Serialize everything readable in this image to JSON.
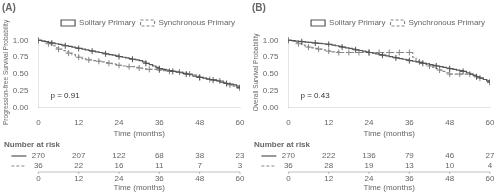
{
  "chart_data": [
    {
      "type": "step",
      "title": "(A)",
      "x_label": "Time (months)",
      "y_label": "Progression-free Survival Probability",
      "annotations": [
        "p = 0.91"
      ],
      "x": [
        0,
        1,
        2,
        3,
        4,
        5,
        6,
        7,
        8,
        9,
        10,
        11,
        12,
        13,
        14,
        15,
        16,
        17,
        18,
        19,
        20,
        21,
        22,
        23,
        24,
        25,
        26,
        27,
        28,
        29,
        30,
        31,
        32,
        33,
        34,
        35,
        36,
        37,
        38,
        39,
        40,
        41,
        42,
        43,
        44,
        45,
        46,
        47,
        48,
        49,
        50,
        51,
        52,
        53,
        54,
        55,
        56,
        57,
        58,
        59,
        60
      ],
      "series": [
        {
          "name": "Solitary Primary",
          "color": "#555555",
          "line_style": "solid",
          "marker": "+",
          "values": [
            1.0,
            0.99,
            0.98,
            0.97,
            0.96,
            0.95,
            0.94,
            0.93,
            0.92,
            0.91,
            0.9,
            0.89,
            0.88,
            0.87,
            0.86,
            0.85,
            0.84,
            0.83,
            0.82,
            0.81,
            0.8,
            0.79,
            0.78,
            0.77,
            0.76,
            0.75,
            0.74,
            0.73,
            0.72,
            0.71,
            0.7,
            0.68,
            0.66,
            0.64,
            0.62,
            0.6,
            0.58,
            0.57,
            0.56,
            0.55,
            0.54,
            0.53,
            0.52,
            0.51,
            0.5,
            0.49,
            0.47,
            0.46,
            0.45,
            0.44,
            0.43,
            0.42,
            0.41,
            0.4,
            0.38,
            0.37,
            0.36,
            0.35,
            0.34,
            0.32,
            0.3
          ]
        },
        {
          "name": "Synchronous Primary",
          "color": "#888888",
          "line_style": "dashed",
          "marker": "+",
          "values": [
            1.0,
            0.99,
            0.97,
            0.95,
            0.92,
            0.89,
            0.87,
            0.85,
            0.83,
            0.81,
            0.79,
            0.77,
            0.75,
            0.73,
            0.72,
            0.71,
            0.7,
            0.7,
            0.69,
            0.68,
            0.67,
            0.66,
            0.65,
            0.64,
            0.63,
            0.62,
            0.61,
            0.61,
            0.61,
            0.6,
            0.59,
            0.58,
            0.57,
            0.57,
            0.57,
            0.57,
            0.56,
            0.55,
            0.54,
            0.54,
            0.54,
            0.54,
            0.53,
            0.52,
            0.51,
            0.5,
            0.49,
            0.47,
            0.45,
            0.44,
            0.43,
            0.42,
            0.42,
            0.41,
            0.4,
            0.38,
            0.36,
            0.34,
            0.32,
            0.3,
            0.29
          ]
        }
      ],
      "xlim": [
        0,
        60
      ],
      "ylim": [
        0,
        1.05
      ],
      "xticks": [
        0,
        12,
        24,
        36,
        48,
        60
      ],
      "yticks": [
        {
          "value": 0,
          "label": "0.00"
        },
        0.25,
        {
          "value": 0.5,
          "label": "0.50"
        },
        0.75,
        {
          "value": 1,
          "label": "1.00"
        }
      ],
      "grid": false,
      "legend": "upper right",
      "number_at_risk": {
        "title": "Number at risk",
        "x": [
          0,
          12,
          24,
          36,
          48,
          60
        ],
        "rows": [
          [
            270,
            207,
            122,
            68,
            38,
            23
          ],
          [
            36,
            22,
            16,
            11,
            7,
            3
          ]
        ]
      }
    },
    {
      "type": "step",
      "title": "(B)",
      "x_label": "Time (months)",
      "y_label": "Overall Survival Probability",
      "annotations": [
        "p = 0.43"
      ],
      "x": [
        0,
        1,
        2,
        3,
        4,
        5,
        6,
        7,
        8,
        9,
        10,
        11,
        12,
        13,
        14,
        15,
        16,
        17,
        18,
        19,
        20,
        21,
        22,
        23,
        24,
        25,
        26,
        27,
        28,
        29,
        30,
        31,
        32,
        33,
        34,
        35,
        36,
        37,
        38,
        39,
        40,
        41,
        42,
        43,
        44,
        45,
        46,
        47,
        48,
        49,
        50,
        51,
        52,
        53,
        54,
        55,
        56,
        57,
        58,
        59,
        60
      ],
      "series": [
        {
          "name": "Solitary Primary",
          "color": "#555555",
          "line_style": "solid",
          "marker": "+",
          "values": [
            1.0,
            0.995,
            0.99,
            0.985,
            0.98,
            0.975,
            0.97,
            0.965,
            0.96,
            0.955,
            0.95,
            0.945,
            0.94,
            0.93,
            0.92,
            0.91,
            0.9,
            0.89,
            0.88,
            0.87,
            0.86,
            0.85,
            0.84,
            0.83,
            0.82,
            0.81,
            0.8,
            0.79,
            0.78,
            0.77,
            0.76,
            0.75,
            0.74,
            0.73,
            0.72,
            0.71,
            0.7,
            0.69,
            0.68,
            0.67,
            0.66,
            0.65,
            0.64,
            0.63,
            0.62,
            0.61,
            0.6,
            0.59,
            0.58,
            0.57,
            0.56,
            0.55,
            0.54,
            0.52,
            0.5,
            0.48,
            0.46,
            0.44,
            0.42,
            0.4,
            0.38
          ]
        },
        {
          "name": "Synchronous Primary",
          "color": "#888888",
          "line_style": "dashed",
          "marker": "+",
          "values": [
            1.0,
            0.99,
            0.97,
            0.95,
            0.93,
            0.91,
            0.9,
            0.89,
            0.88,
            0.87,
            0.86,
            0.85,
            0.84,
            0.83,
            0.83,
            0.82,
            0.82,
            0.82,
            0.82,
            0.82,
            0.82,
            0.82,
            0.82,
            0.82,
            0.82,
            0.82,
            0.82,
            0.82,
            0.82,
            0.82,
            0.82,
            0.82,
            0.82,
            0.82,
            0.82,
            0.82,
            0.82,
            0.75,
            0.7,
            0.68,
            0.66,
            0.64,
            0.62,
            0.6,
            0.58,
            0.56,
            0.54,
            0.52,
            0.5,
            0.5,
            0.5,
            0.5,
            0.5,
            0.5,
            0.5,
            0.48,
            0.46,
            0.44,
            0.42,
            0.4,
            0.38
          ]
        }
      ],
      "xlim": [
        0,
        60
      ],
      "ylim": [
        0,
        1.05
      ],
      "xticks": [
        0,
        12,
        24,
        36,
        48,
        60
      ],
      "yticks": [
        {
          "value": 0,
          "label": "0.00"
        },
        0.25,
        {
          "value": 0.5,
          "label": "0.50"
        },
        0.75,
        {
          "value": 1,
          "label": "1.00"
        }
      ],
      "grid": false,
      "legend": "upper right",
      "number_at_risk": {
        "title": "Number at risk",
        "x": [
          0,
          12,
          24,
          36,
          48,
          60
        ],
        "rows": [
          [
            270,
            222,
            136,
            79,
            46,
            27
          ],
          [
            36,
            28,
            19,
            13,
            10,
            4
          ]
        ]
      }
    }
  ]
}
